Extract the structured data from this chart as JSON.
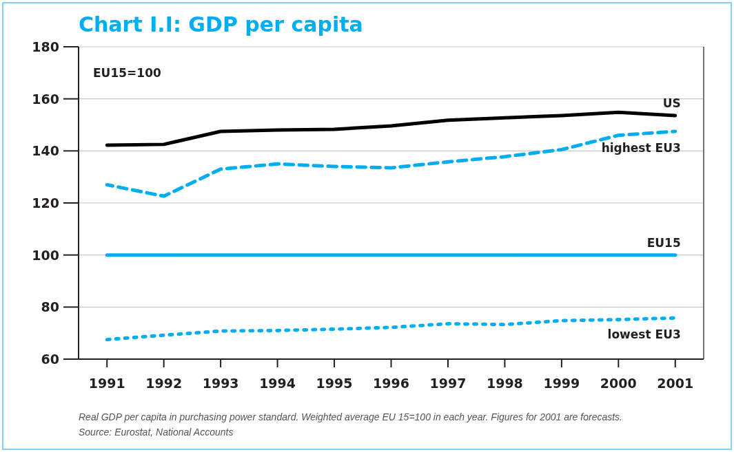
{
  "chart_data": {
    "type": "line",
    "title": "Chart I.I: GDP per capita",
    "x": [
      1991,
      1992,
      1993,
      1994,
      1995,
      1996,
      1997,
      1998,
      1999,
      2000,
      2001
    ],
    "series": [
      {
        "name": "US",
        "color": "#000000",
        "line_style": "solid",
        "values": [
          142.2,
          142.5,
          147.5,
          148,
          148.3,
          149.6,
          151.8,
          152.7,
          153.6,
          154.8,
          153.6
        ]
      },
      {
        "name": "highest EU3",
        "color": "#00aeef",
        "line_style": "dashed",
        "values": [
          127,
          122.6,
          133,
          135,
          134,
          133.5,
          135.8,
          137.8,
          140.5,
          146,
          147.5
        ]
      },
      {
        "name": "EU15",
        "color": "#00aeef",
        "line_style": "solid",
        "values": [
          100,
          100,
          100,
          100,
          100,
          100,
          100,
          100,
          100,
          100,
          100
        ]
      },
      {
        "name": "lowest EU3",
        "color": "#00aeef",
        "line_style": "dotted",
        "values": [
          67.5,
          69.2,
          70.8,
          71,
          71.5,
          72.2,
          73.6,
          73.3,
          74.8,
          75.2,
          75.8
        ]
      }
    ],
    "xlim": [
      1990.5,
      2001.5
    ],
    "xticks": [
      1991,
      1992,
      1993,
      1994,
      1995,
      1996,
      1997,
      1998,
      1999,
      2000,
      2001
    ],
    "ylim": [
      60,
      180
    ],
    "yticks": [
      60,
      80,
      100,
      120,
      140,
      160,
      180
    ],
    "grid": "y",
    "marker": "none",
    "annotations": [
      "EU15=100",
      "Real GDP per capita in purchasing power standard. Weighted average EU 15=100 in each year. Figures for 2001 are forecasts.",
      "Source: Eurostat, National Accounts"
    ]
  }
}
